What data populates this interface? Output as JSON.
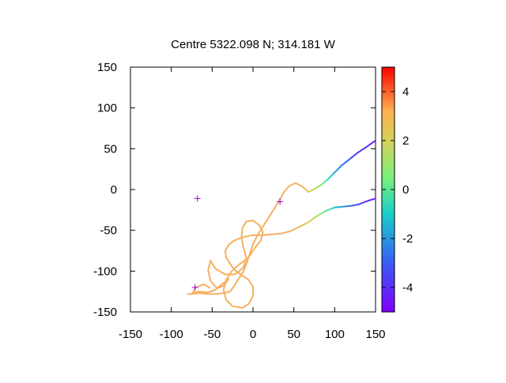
{
  "chart_data": {
    "type": "scatter",
    "title": "Centre 5322.098 N; 314.181  W",
    "xlabel": "",
    "ylabel": "",
    "xlim": [
      -150,
      150
    ],
    "ylim": [
      -150,
      150
    ],
    "x_ticks": [
      -150,
      -100,
      -50,
      0,
      50,
      100,
      150
    ],
    "y_ticks": [
      -150,
      -100,
      -50,
      0,
      50,
      100,
      150
    ],
    "grid": false,
    "colorbar": {
      "range": [
        -5,
        5
      ],
      "ticks": [
        4,
        2,
        0,
        -2,
        -4
      ],
      "colormap": "rainbow"
    },
    "markers": [
      {
        "x": -68,
        "y": -11,
        "color": "#a000d0",
        "symbol": "+"
      },
      {
        "x": 33,
        "y": -15,
        "color": "#a000d0",
        "symbol": "+"
      },
      {
        "x": -71,
        "y": -120,
        "color": "#a000d0",
        "symbol": "+"
      }
    ],
    "series": [
      {
        "points": [
          [
            150,
            60,
            -4.6
          ],
          [
            140,
            53,
            -4.2
          ],
          [
            128,
            45,
            -3.7
          ],
          [
            118,
            37,
            -3.2
          ],
          [
            108,
            29,
            -2.5
          ],
          [
            100,
            21,
            -1.6
          ],
          [
            92,
            13,
            -0.5
          ],
          [
            84,
            6,
            0.6
          ],
          [
            76,
            1,
            1.6
          ],
          [
            68,
            -3,
            2.3
          ],
          [
            60,
            4,
            2.7
          ],
          [
            52,
            8,
            3.0
          ],
          [
            44,
            4,
            3.0
          ],
          [
            38,
            -3,
            3.0
          ],
          [
            33,
            -12,
            3.0
          ],
          [
            27,
            -22,
            3.0
          ],
          [
            20,
            -33,
            3.0
          ],
          [
            13,
            -44,
            3.0
          ],
          [
            6,
            -55,
            3.0
          ],
          [
            0,
            -67,
            3.0
          ],
          [
            -4,
            -79,
            3.0
          ],
          [
            -8,
            -91,
            3.0
          ],
          [
            -12,
            -101,
            3.0
          ],
          [
            -18,
            -110,
            3.0
          ],
          [
            -23,
            -118,
            3.0
          ],
          [
            -28,
            -125,
            3.0
          ],
          [
            -36,
            -127,
            3.0
          ],
          [
            -46,
            -128,
            3.0
          ],
          [
            -56,
            -128,
            3.0
          ],
          [
            -66,
            -127,
            3.0
          ],
          [
            -76,
            -128,
            3.0
          ],
          [
            -81,
            -128,
            3.0
          ]
        ]
      },
      {
        "points": [
          [
            150,
            -11,
            -4.6
          ],
          [
            140,
            -14,
            -4.1
          ],
          [
            130,
            -18,
            -3.5
          ],
          [
            120,
            -20,
            -2.8
          ],
          [
            110,
            -21,
            -2.0
          ],
          [
            100,
            -22,
            -1.2
          ],
          [
            92,
            -25,
            -0.3
          ],
          [
            84,
            -29,
            0.6
          ],
          [
            76,
            -34,
            1.5
          ],
          [
            68,
            -40,
            2.3
          ],
          [
            58,
            -45,
            2.7
          ],
          [
            46,
            -51,
            3.0
          ],
          [
            34,
            -54,
            3.0
          ],
          [
            22,
            -55,
            3.0
          ],
          [
            10,
            -56,
            3.0
          ],
          [
            -2,
            -56,
            3.0
          ],
          [
            -14,
            -59,
            3.0
          ],
          [
            -24,
            -63,
            3.0
          ],
          [
            -30,
            -68,
            3.0
          ],
          [
            -34,
            -75,
            3.0
          ],
          [
            -33,
            -83,
            3.0
          ],
          [
            -28,
            -91,
            3.0
          ],
          [
            -22,
            -99,
            3.0
          ],
          [
            -14,
            -105,
            3.0
          ],
          [
            -6,
            -110,
            3.0
          ],
          [
            0,
            -119,
            3.0
          ],
          [
            0,
            -130,
            3.0
          ],
          [
            -5,
            -140,
            3.0
          ],
          [
            -13,
            -145,
            3.0
          ],
          [
            -25,
            -143,
            3.0
          ],
          [
            -33,
            -135,
            3.0
          ],
          [
            -36,
            -123,
            3.0
          ],
          [
            -33,
            -111,
            3.0
          ],
          [
            -26,
            -100,
            3.0
          ],
          [
            -16,
            -91,
            3.0
          ],
          [
            -6,
            -84,
            3.0
          ],
          [
            2,
            -72,
            3.0
          ],
          [
            10,
            -62,
            3.0
          ],
          [
            12,
            -52,
            3.0
          ],
          [
            8,
            -44,
            3.0
          ],
          [
            0,
            -38,
            3.0
          ],
          [
            -8,
            -39,
            3.0
          ],
          [
            -13,
            -47,
            3.0
          ],
          [
            -14,
            -58,
            3.0
          ],
          [
            -12,
            -70,
            3.0
          ],
          [
            -8,
            -84,
            3.0
          ],
          [
            -12,
            -96,
            3.0
          ],
          [
            -22,
            -104,
            3.0
          ],
          [
            -34,
            -104,
            3.0
          ],
          [
            -46,
            -97,
            3.0
          ],
          [
            -52,
            -87,
            3.0
          ],
          [
            -55,
            -99,
            3.0
          ],
          [
            -52,
            -112,
            3.0
          ],
          [
            -44,
            -121,
            3.0
          ],
          [
            -36,
            -118,
            3.0
          ],
          [
            -30,
            -110,
            3.0
          ],
          [
            -38,
            -116,
            3.0
          ],
          [
            -46,
            -123,
            3.0
          ],
          [
            -55,
            -126,
            3.0
          ],
          [
            -66,
            -125,
            3.0
          ],
          [
            -74,
            -127,
            3.0
          ],
          [
            -70,
            -120,
            3.0
          ],
          [
            -60,
            -116,
            3.0
          ],
          [
            -52,
            -121,
            3.0
          ]
        ]
      }
    ]
  }
}
